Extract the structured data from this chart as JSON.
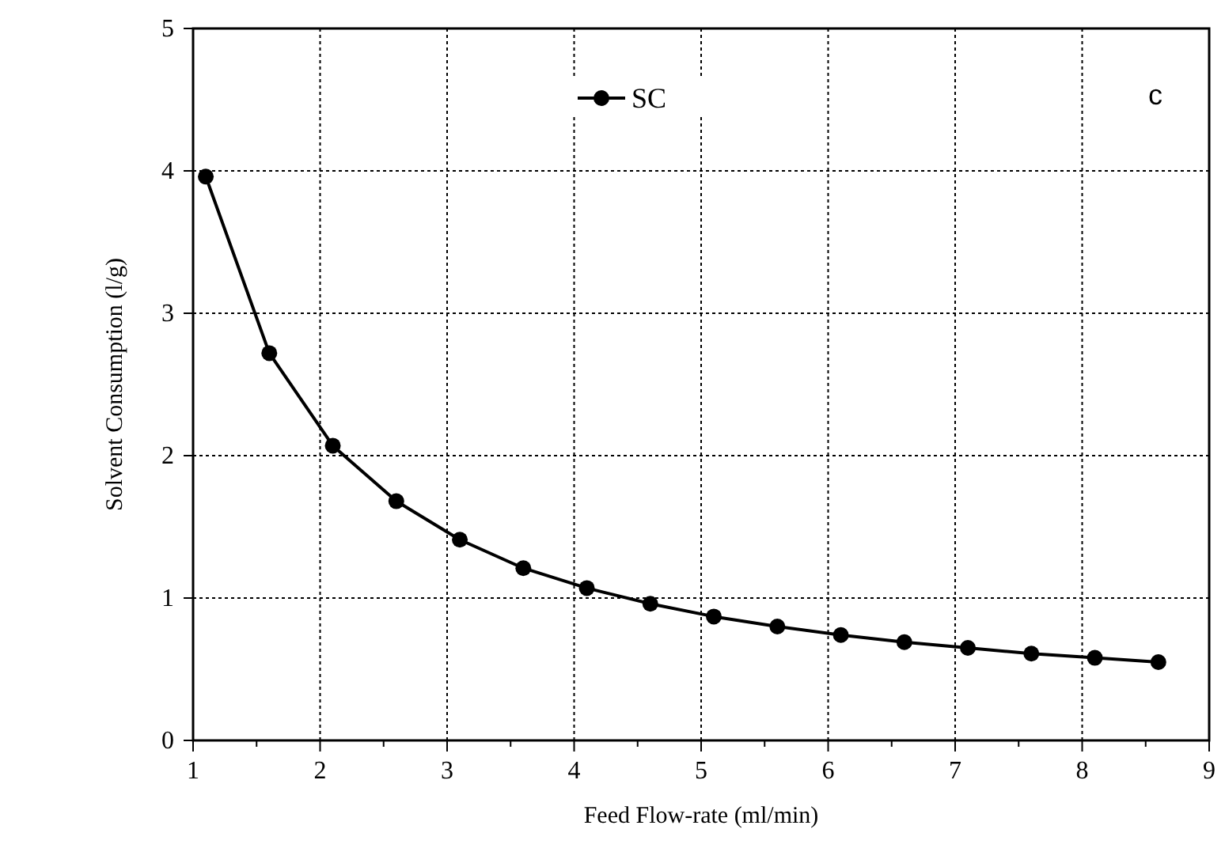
{
  "chart_data": {
    "type": "line",
    "xlabel": "Feed Flow-rate (ml/min)",
    "ylabel": "Solvent Consumption (l/g)",
    "annotations": [
      "c"
    ],
    "x": [
      1.1,
      1.6,
      2.1,
      2.6,
      3.1,
      3.6,
      4.1,
      4.6,
      5.1,
      5.6,
      6.1,
      6.6,
      7.1,
      7.6,
      8.1,
      8.6
    ],
    "series": [
      {
        "name": "SC",
        "color": "#000000",
        "values": [
          3.96,
          2.72,
          2.07,
          1.68,
          1.41,
          1.21,
          1.07,
          0.96,
          0.87,
          0.8,
          0.74,
          0.69,
          0.65,
          0.61,
          0.58,
          0.55
        ]
      }
    ],
    "xlim": [
      1,
      9
    ],
    "ylim": [
      0,
      5
    ],
    "xticks": [
      1,
      {
        "value": 1.5,
        "label": null
      },
      2,
      {
        "value": 2.5,
        "label": null
      },
      3,
      {
        "value": 3.5,
        "label": null
      },
      4,
      {
        "value": 4.5,
        "label": null
      },
      5,
      {
        "value": 5.5,
        "label": null
      },
      6,
      {
        "value": 6.5,
        "label": null
      },
      7,
      {
        "value": 7.5,
        "label": null
      },
      8,
      {
        "value": 8.5,
        "label": null
      },
      9
    ],
    "yticks": [
      0,
      1,
      2,
      3,
      4,
      5
    ],
    "grid": true,
    "legend": "top",
    "marker": "circle",
    "line_style": "solid"
  }
}
